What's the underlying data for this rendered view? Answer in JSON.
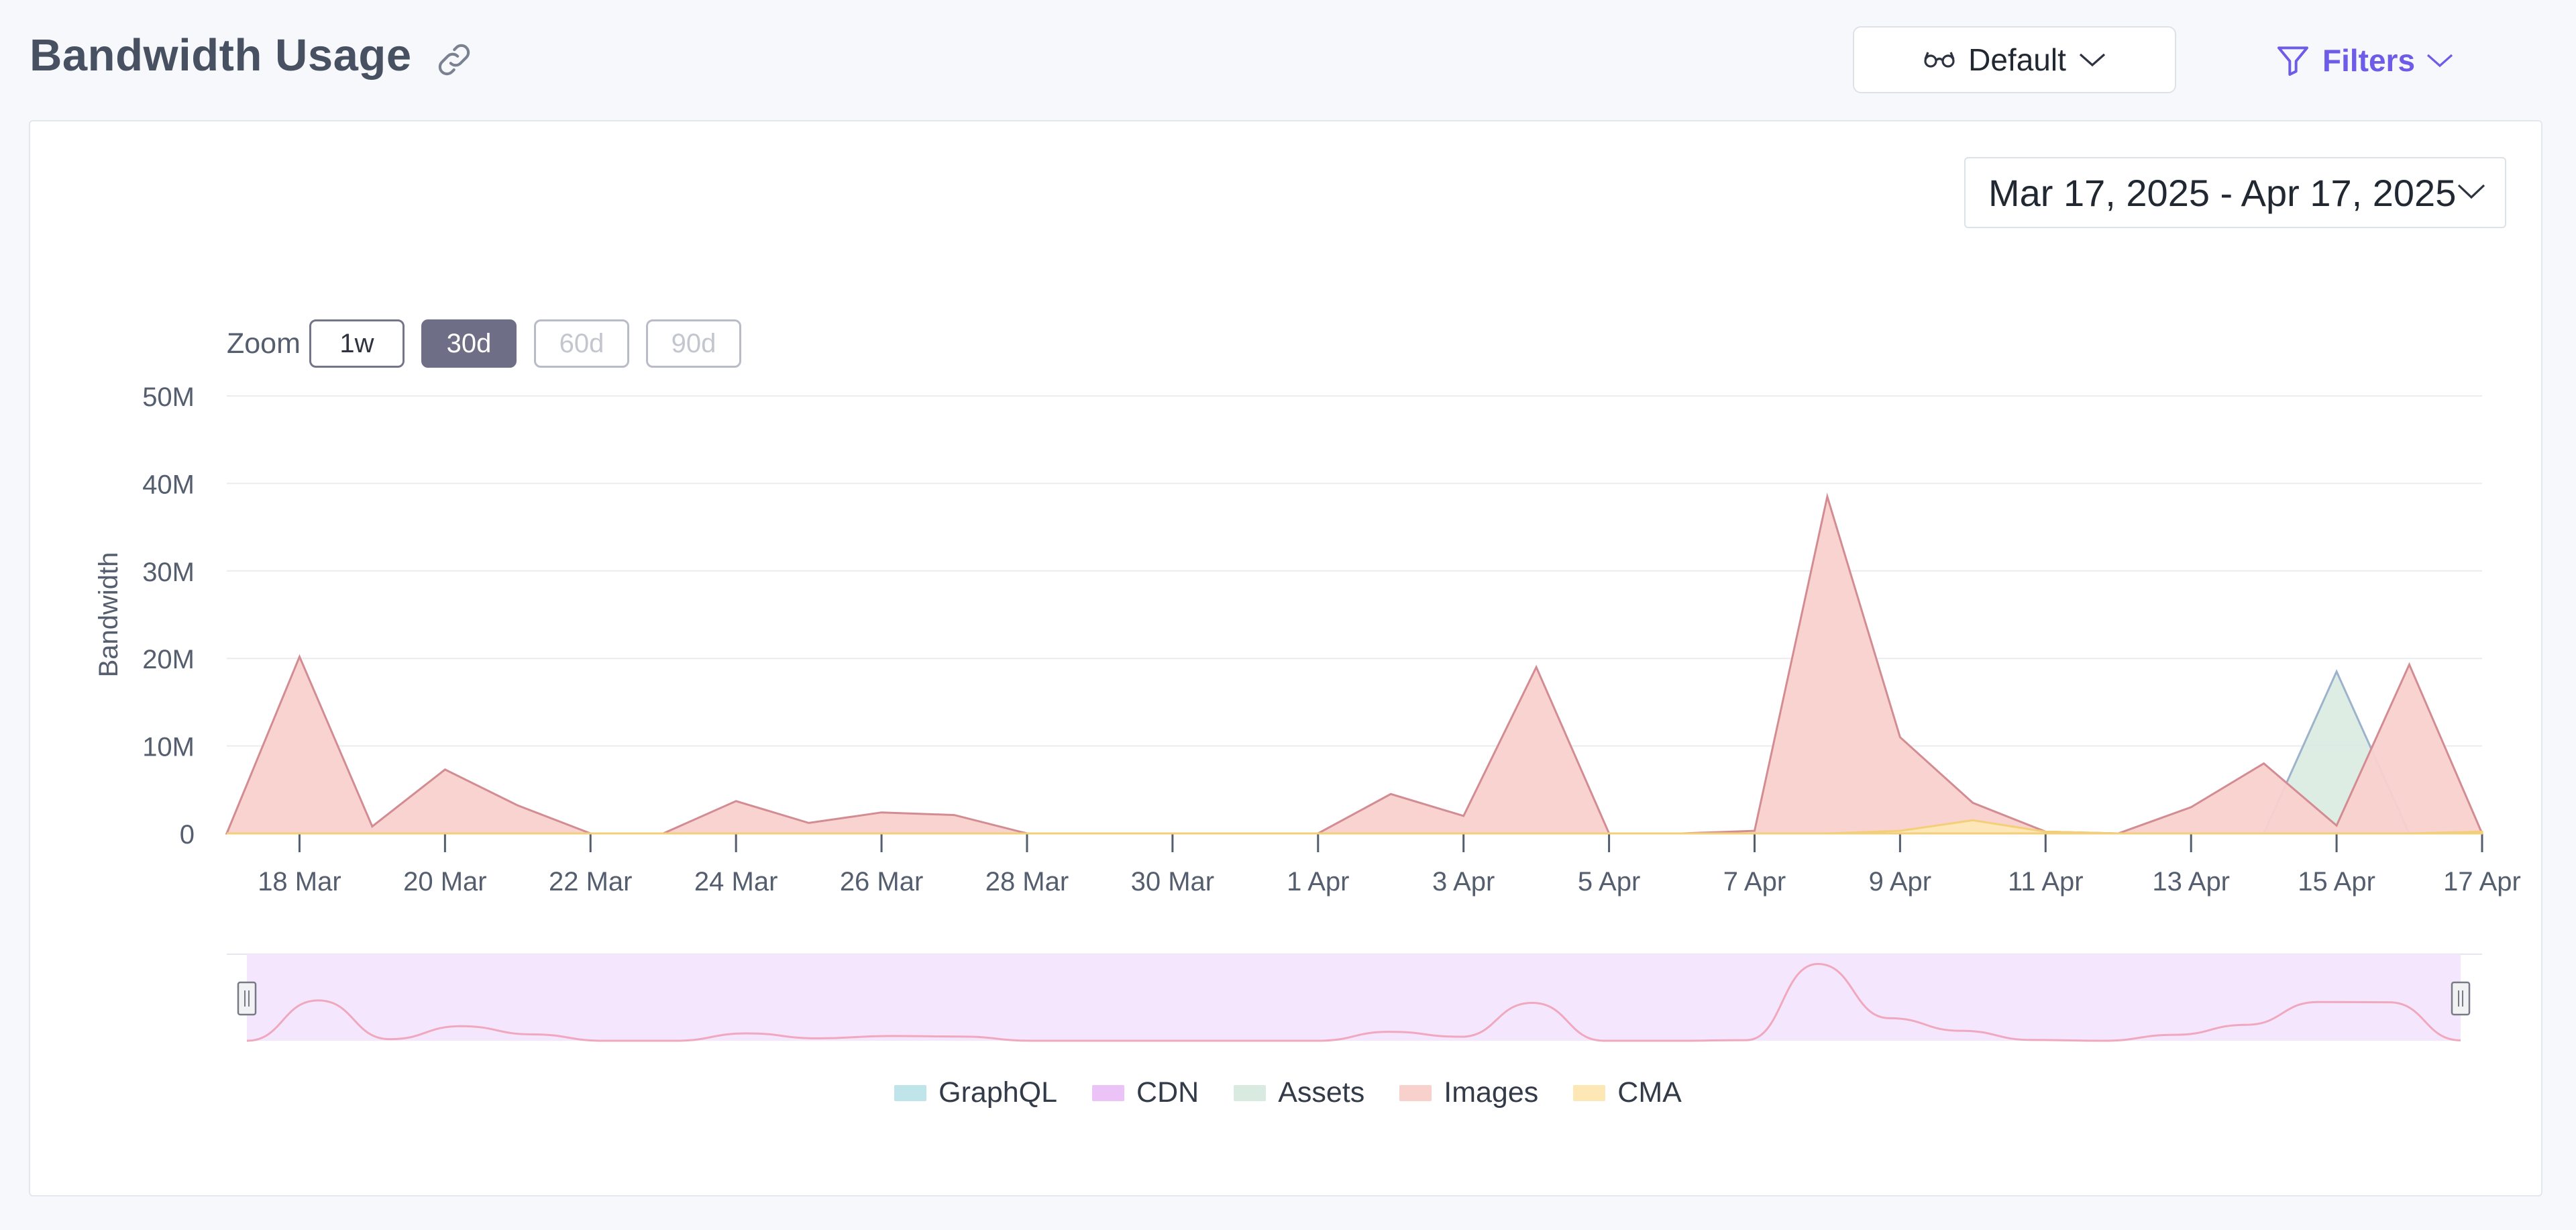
{
  "header": {
    "title": "Bandwidth Usage",
    "view_select": "Default",
    "filters_label": "Filters"
  },
  "colors": {
    "accent": "#6c5ce7",
    "images_fill": "#f8d1cd",
    "images_line": "#d28c92",
    "assets_fill": "#d9ebe1",
    "assets_line": "#9db3cc",
    "cma_fill": "#fde7b5",
    "graphql": "#bfe5ea",
    "cdn": "#ecc3f7",
    "navigator_fill": "#f4e6fc",
    "navigator_line": "#f0a8bf"
  },
  "date_range": "Mar 17, 2025 - Apr 17, 2025",
  "zoom": {
    "label": "Zoom",
    "options": [
      "1w",
      "30d",
      "60d",
      "90d"
    ],
    "selected": "30d",
    "disabled": [
      "60d",
      "90d"
    ]
  },
  "chart_data": {
    "type": "area",
    "ylabel": "Bandwidth",
    "ylim": [
      0,
      50000000
    ],
    "y_ticks": [
      "0",
      "10M",
      "20M",
      "30M",
      "40M",
      "50M"
    ],
    "x_start": "2025-03-17",
    "x_end": "2025-04-17",
    "x_ticks": [
      "18 Mar",
      "20 Mar",
      "22 Mar",
      "24 Mar",
      "26 Mar",
      "28 Mar",
      "30 Mar",
      "1 Apr",
      "3 Apr",
      "5 Apr",
      "7 Apr",
      "9 Apr",
      "11 Apr",
      "13 Apr",
      "15 Apr",
      "17 Apr"
    ],
    "x": [
      "2025-03-17",
      "2025-03-18",
      "2025-03-19",
      "2025-03-20",
      "2025-03-21",
      "2025-03-22",
      "2025-03-23",
      "2025-03-24",
      "2025-03-25",
      "2025-03-26",
      "2025-03-27",
      "2025-03-28",
      "2025-03-29",
      "2025-03-30",
      "2025-03-31",
      "2025-04-01",
      "2025-04-02",
      "2025-04-03",
      "2025-04-04",
      "2025-04-05",
      "2025-04-06",
      "2025-04-07",
      "2025-04-08",
      "2025-04-09",
      "2025-04-10",
      "2025-04-11",
      "2025-04-12",
      "2025-04-13",
      "2025-04-14",
      "2025-04-15",
      "2025-04-16",
      "2025-04-17"
    ],
    "series": [
      {
        "name": "GraphQL",
        "values": [
          0,
          0,
          0,
          0,
          0,
          0,
          0,
          0,
          0,
          0,
          0,
          0,
          0,
          0,
          0,
          0,
          0,
          0,
          0,
          0,
          0,
          0,
          0,
          0,
          0,
          0,
          0,
          0,
          0,
          0,
          0,
          0
        ]
      },
      {
        "name": "CDN",
        "values": [
          0,
          0,
          0,
          0,
          0,
          0,
          0,
          0,
          0,
          0,
          0,
          0,
          0,
          0,
          0,
          0,
          0,
          0,
          0,
          0,
          0,
          0,
          0,
          0,
          0,
          0,
          0,
          0,
          0,
          0,
          0,
          0
        ]
      },
      {
        "name": "Assets",
        "values": [
          0,
          0,
          0,
          0,
          0,
          0,
          0,
          0,
          0,
          0,
          0,
          0,
          0,
          0,
          0,
          0,
          0,
          0,
          0,
          0,
          0,
          0,
          0,
          0,
          0,
          0,
          0,
          0,
          0,
          18500000,
          0,
          0
        ]
      },
      {
        "name": "Images",
        "values": [
          0,
          20200000,
          800000,
          7300000,
          3200000,
          0,
          0,
          3700000,
          1200000,
          2400000,
          2100000,
          0,
          0,
          0,
          0,
          0,
          4500000,
          2000000,
          19000000,
          0,
          0,
          300000,
          38500000,
          11000000,
          3500000,
          200000,
          0,
          3000000,
          8000000,
          900000,
          19300000,
          0
        ]
      },
      {
        "name": "CMA",
        "values": [
          0,
          0,
          0,
          0,
          0,
          0,
          0,
          0,
          0,
          0,
          0,
          0,
          0,
          0,
          0,
          0,
          0,
          0,
          0,
          0,
          0,
          0,
          0,
          300000,
          1500000,
          200000,
          0,
          0,
          0,
          0,
          0,
          200000
        ]
      }
    ]
  }
}
